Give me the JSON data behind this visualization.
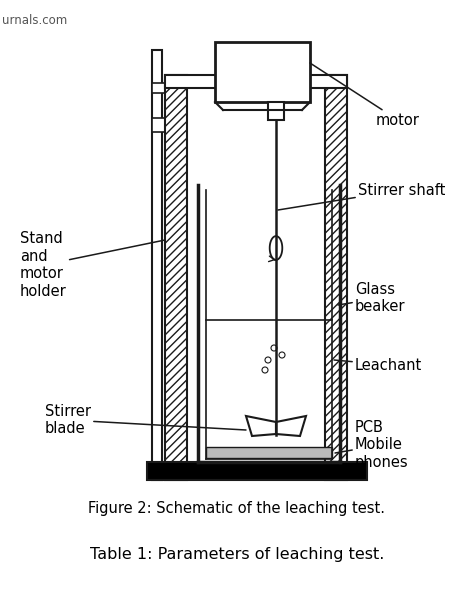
{
  "title": "Figure 2: Schematic of the leaching test.",
  "subtitle": "Table 1: Parameters of leaching test.",
  "watermark": "urnals.com",
  "labels": {
    "motor": "motor",
    "stirrer_shaft": "Stirrer shaft",
    "stand_motor": "Stand\nand\nmotor\nholder",
    "glass_beaker": "Glass\nbeaker",
    "stirrer_blade": "Stirrer\nblade",
    "leachant": "Leachant",
    "pcb": "PCB\nMobile\nphones"
  },
  "bg_color": "#ffffff",
  "line_color": "#1a1a1a"
}
